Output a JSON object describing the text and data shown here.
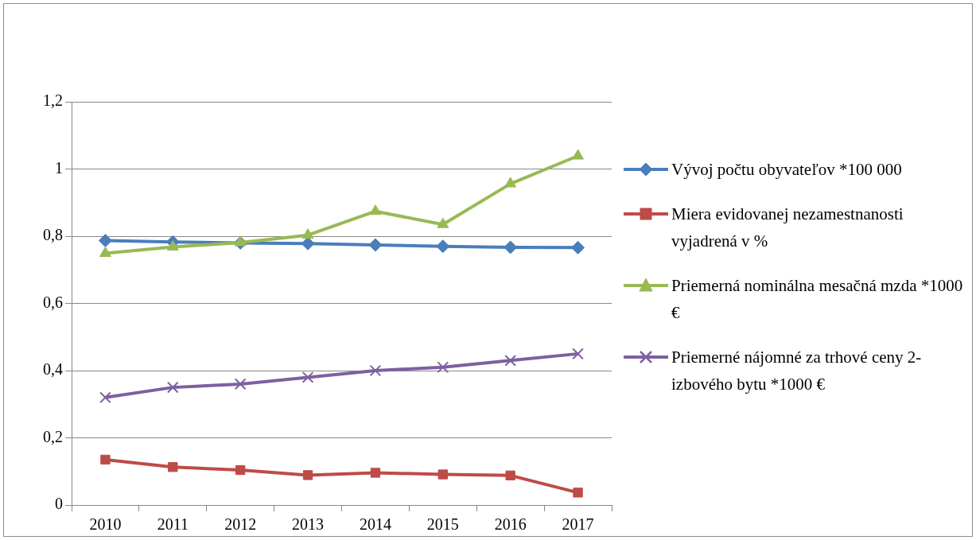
{
  "chart_data": {
    "type": "line",
    "categories": [
      "2010",
      "2011",
      "2012",
      "2013",
      "2014",
      "2015",
      "2016",
      "2017"
    ],
    "series": [
      {
        "name": "Vývoj počtu obyvateľov *100 000",
        "color": "#4a7ebb",
        "marker": "diamond",
        "values": [
          0.787,
          0.783,
          0.78,
          0.778,
          0.774,
          0.77,
          0.767,
          0.766
        ]
      },
      {
        "name": "Miera evidovanej nezamestnanosti vyjadrená v %",
        "color": "#be4b48",
        "marker": "square",
        "values": [
          0.135,
          0.113,
          0.104,
          0.089,
          0.096,
          0.091,
          0.088,
          0.037
        ]
      },
      {
        "name": "Priemerná nominálna mesačná mzda *1000 €",
        "color": "#98b954",
        "marker": "triangle",
        "values": [
          0.749,
          0.768,
          0.781,
          0.803,
          0.874,
          0.835,
          0.956,
          1.039
        ]
      },
      {
        "name": "Priemerné nájomné za trhové ceny 2-izbového bytu *1000 €",
        "color": "#7d60a0",
        "marker": "cross",
        "values": [
          0.32,
          0.35,
          0.36,
          0.38,
          0.4,
          0.41,
          0.43,
          0.45
        ]
      }
    ],
    "ylim": [
      0,
      1.2
    ],
    "yticks": [
      0,
      {
        "value": 0.2,
        "label": "0,2"
      },
      {
        "value": 0.4,
        "label": "0,4"
      },
      {
        "value": 0.6,
        "label": "0,6"
      },
      {
        "value": 0.8,
        "label": "0,8"
      },
      1,
      {
        "value": 1.2,
        "label": "1,2"
      }
    ],
    "grid": "y",
    "legend": "right",
    "line_style": "solid"
  }
}
